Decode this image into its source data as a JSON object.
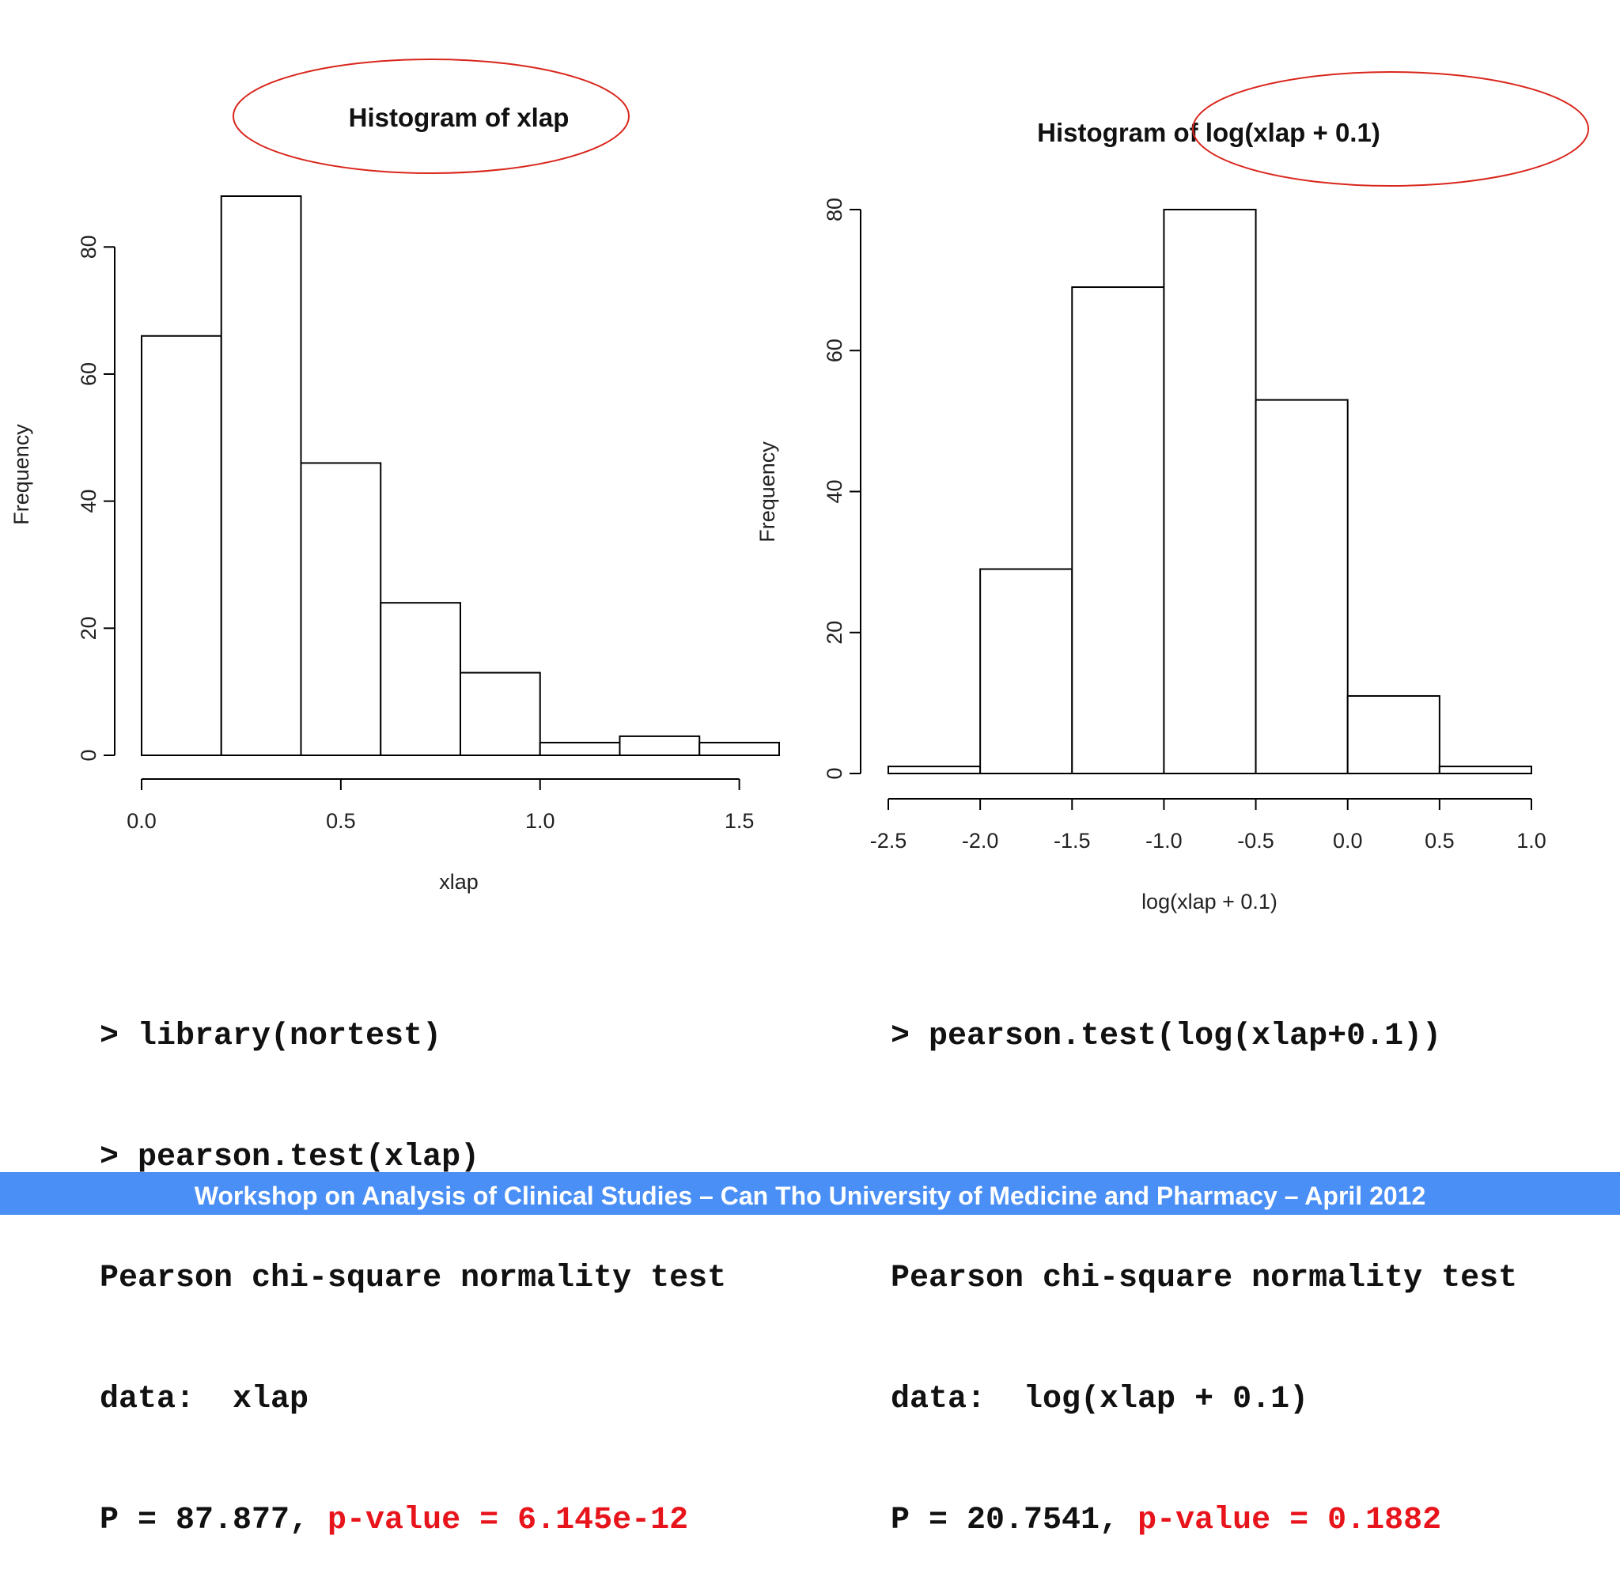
{
  "chart_data": [
    {
      "type": "bar",
      "title": "Histogram of xlap",
      "xlabel": "xlap",
      "ylabel": "Frequency",
      "bin_edges": [
        0.0,
        0.2,
        0.4,
        0.6,
        0.8,
        1.0,
        1.2,
        1.4,
        1.6
      ],
      "values": [
        66,
        88,
        46,
        24,
        13,
        2,
        3,
        2
      ],
      "xlim": [
        0.0,
        1.6
      ],
      "ylim": [
        0,
        88
      ],
      "x_ticks": [
        0.0,
        0.5,
        1.0,
        1.5
      ],
      "x_tick_labels": [
        "0.0",
        "0.5",
        "1.0",
        "1.5"
      ],
      "y_ticks": [
        0,
        20,
        40,
        60,
        80
      ],
      "y_tick_labels": [
        "0",
        "20",
        "40",
        "60",
        "80"
      ],
      "grid": false
    },
    {
      "type": "bar",
      "title": "Histogram of log(xlap + 0.1)",
      "xlabel": "log(xlap + 0.1)",
      "ylabel": "Frequency",
      "bin_edges": [
        -2.5,
        -2.0,
        -1.5,
        -1.0,
        -0.5,
        0.0,
        0.5,
        1.0
      ],
      "values": [
        1,
        29,
        69,
        80,
        53,
        11,
        1
      ],
      "xlim": [
        -2.5,
        1.0
      ],
      "ylim": [
        0,
        80
      ],
      "x_ticks": [
        -2.5,
        -2.0,
        -1.5,
        -1.0,
        -0.5,
        0.0,
        0.5,
        1.0
      ],
      "x_tick_labels": [
        "-2.5",
        "-2.0",
        "-1.5",
        "-1.0",
        "-0.5",
        "0.0",
        "0.5",
        "1.0"
      ],
      "y_ticks": [
        0,
        20,
        40,
        60,
        80
      ],
      "y_tick_labels": [
        "0",
        "20",
        "40",
        "60",
        "80"
      ],
      "grid": false
    }
  ],
  "colors": {
    "highlight_ellipse": "#d9261c",
    "p_value_text": "#e8141c",
    "footer_background": "#4a8ff5",
    "footer_text": "#ffffff"
  },
  "console_left": {
    "line1": "> library(nortest)",
    "line2": "> pearson.test(xlap)",
    "line3": "Pearson chi-square normality test",
    "line4": "data:  xlap",
    "line5_prefix": "P = 87.877, ",
    "line5_pvalue": "p-value = 6.145e-12"
  },
  "console_right": {
    "line1": "> pearson.test(log(xlap+0.1))",
    "line3": "Pearson chi-square normality test",
    "line4": "data:  log(xlap + 0.1)",
    "line5_prefix": "P = 20.7541, ",
    "line5_pvalue": "p-value = 0.1882"
  },
  "footer": {
    "text": "Workshop on Analysis of Clinical Studies – Can Tho University of Medicine and Pharmacy – April 2012"
  }
}
